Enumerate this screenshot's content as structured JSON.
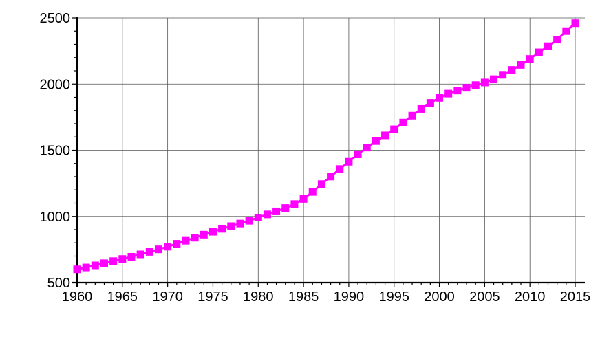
{
  "chart_data": {
    "type": "line",
    "title": "",
    "xlabel": "",
    "ylabel": "",
    "xlim": [
      1960,
      2015
    ],
    "ylim": [
      500,
      2500
    ],
    "grid": true,
    "x_ticks": [
      1960,
      1965,
      1970,
      1975,
      1980,
      1985,
      1990,
      1995,
      2000,
      2005,
      2010,
      2015
    ],
    "y_ticks": [
      500,
      1000,
      1500,
      2000,
      2500
    ],
    "series": [
      {
        "color": "#ff00ff",
        "marker": "square",
        "x": [
          1960,
          1961,
          1962,
          1963,
          1964,
          1965,
          1966,
          1967,
          1968,
          1969,
          1970,
          1971,
          1972,
          1973,
          1974,
          1975,
          1976,
          1977,
          1978,
          1979,
          1980,
          1981,
          1982,
          1983,
          1984,
          1985,
          1986,
          1987,
          1988,
          1989,
          1990,
          1991,
          1992,
          1993,
          1994,
          1995,
          1996,
          1997,
          1998,
          1999,
          2000,
          2001,
          2002,
          2003,
          2004,
          2005,
          2006,
          2007,
          2008,
          2009,
          2010,
          2011,
          2012,
          2013,
          2014,
          2015
        ],
        "y": [
          600,
          614,
          630,
          646,
          662,
          678,
          695,
          713,
          732,
          751,
          771,
          793,
          816,
          839,
          862,
          884,
          906,
          926,
          946,
          967,
          991,
          1015,
          1038,
          1063,
          1093,
          1132,
          1185,
          1244,
          1301,
          1358,
          1413,
          1469,
          1520,
          1569,
          1612,
          1658,
          1709,
          1761,
          1812,
          1858,
          1896,
          1928,
          1951,
          1972,
          1992,
          2012,
          2037,
          2070,
          2107,
          2145,
          2190,
          2240,
          2286,
          2336,
          2400,
          2460
        ]
      }
    ]
  }
}
